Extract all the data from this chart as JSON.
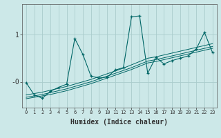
{
  "xlabel": "Humidex (Indice chaleur)",
  "background_color": "#cce8e8",
  "grid_color": "#aacccc",
  "line_color": "#006666",
  "x_values": [
    0,
    1,
    2,
    3,
    4,
    5,
    6,
    7,
    8,
    9,
    10,
    11,
    12,
    13,
    14,
    15,
    16,
    17,
    18,
    19,
    20,
    21,
    22,
    23
  ],
  "y_main": [
    -0.02,
    -0.28,
    -0.35,
    -0.2,
    -0.12,
    -0.05,
    0.92,
    0.58,
    0.12,
    0.08,
    0.1,
    0.25,
    0.3,
    1.38,
    1.4,
    0.18,
    0.52,
    0.38,
    0.45,
    0.5,
    0.55,
    0.7,
    1.05,
    0.62
  ],
  "y_line1": [
    -0.28,
    -0.25,
    -0.22,
    -0.18,
    -0.14,
    -0.1,
    -0.05,
    0.0,
    0.05,
    0.11,
    0.17,
    0.23,
    0.29,
    0.36,
    0.43,
    0.5,
    0.53,
    0.57,
    0.61,
    0.65,
    0.69,
    0.73,
    0.77,
    0.81
  ],
  "y_line2": [
    -0.33,
    -0.3,
    -0.27,
    -0.23,
    -0.19,
    -0.15,
    -0.1,
    -0.05,
    0.0,
    0.06,
    0.12,
    0.18,
    0.24,
    0.3,
    0.37,
    0.44,
    0.47,
    0.51,
    0.55,
    0.59,
    0.63,
    0.67,
    0.71,
    0.75
  ],
  "y_line3": [
    -0.36,
    -0.33,
    -0.3,
    -0.27,
    -0.23,
    -0.19,
    -0.14,
    -0.09,
    -0.04,
    0.02,
    0.08,
    0.14,
    0.2,
    0.26,
    0.33,
    0.4,
    0.43,
    0.47,
    0.51,
    0.55,
    0.59,
    0.63,
    0.67,
    0.71
  ],
  "ylim": [
    -0.55,
    1.65
  ],
  "xlim": [
    -0.5,
    23.5
  ]
}
